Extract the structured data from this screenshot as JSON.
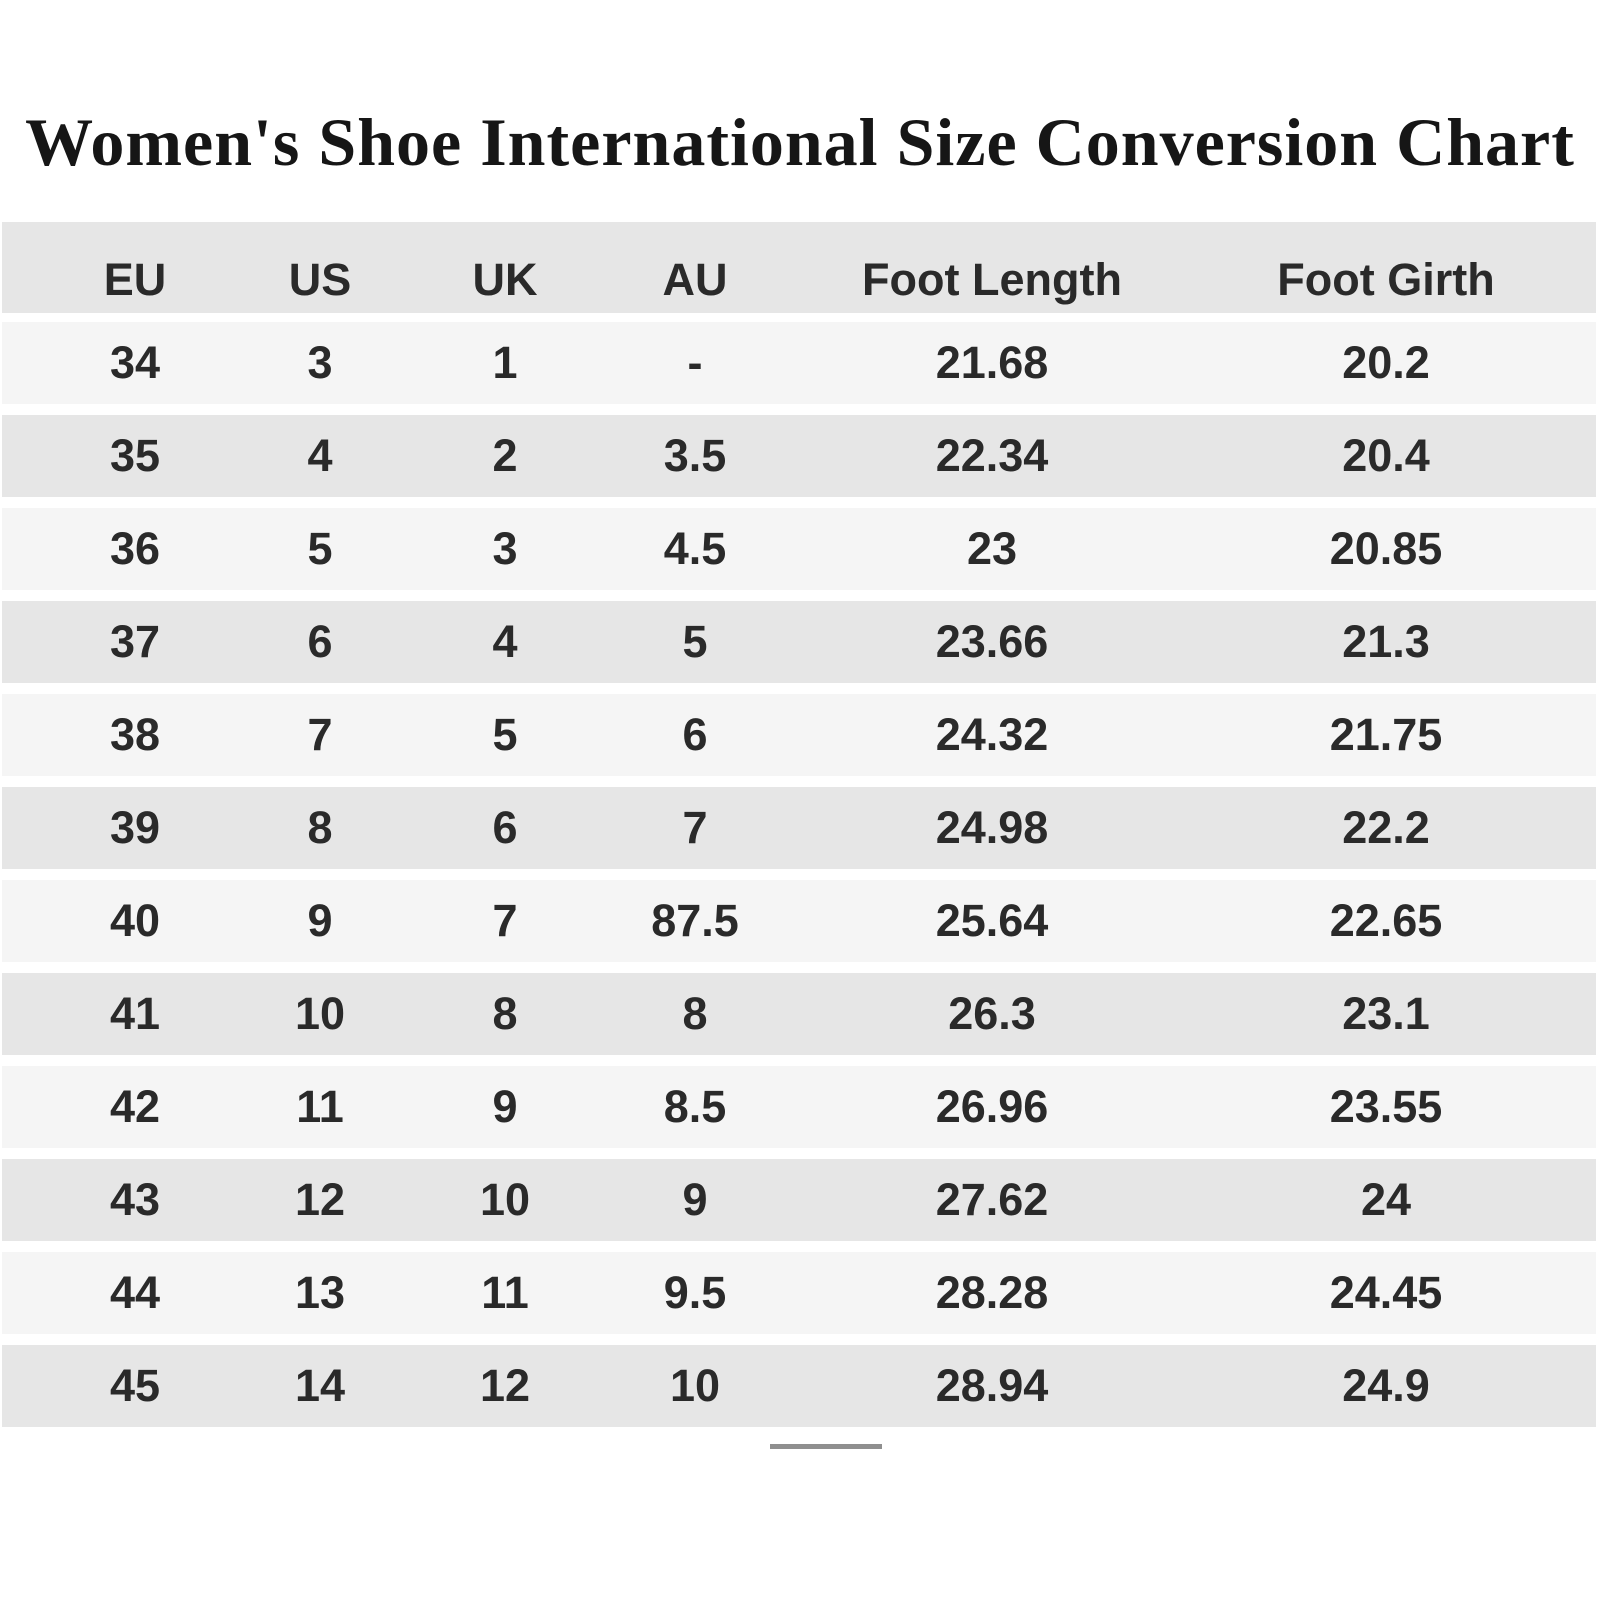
{
  "title": "Women's Shoe International Size Conversion Chart",
  "chart_data": {
    "type": "table",
    "title": "Women's Shoe International Size Conversion Chart",
    "columns": [
      "EU",
      "US",
      "UK",
      "AU",
      "Foot Length",
      "Foot Girth"
    ],
    "rows": [
      [
        "34",
        "3",
        "1",
        "-",
        "21.68",
        "20.2"
      ],
      [
        "35",
        "4",
        "2",
        "3.5",
        "22.34",
        "20.4"
      ],
      [
        "36",
        "5",
        "3",
        "4.5",
        "23",
        "20.85"
      ],
      [
        "37",
        "6",
        "4",
        "5",
        "23.66",
        "21.3"
      ],
      [
        "38",
        "7",
        "5",
        "6",
        "24.32",
        "21.75"
      ],
      [
        "39",
        "8",
        "6",
        "7",
        "24.98",
        "22.2"
      ],
      [
        "40",
        "9",
        "7",
        "87.5",
        "25.64",
        "22.65"
      ],
      [
        "41",
        "10",
        "8",
        "8",
        "26.3",
        "23.1"
      ],
      [
        "42",
        "11",
        "9",
        "8.5",
        "26.96",
        "23.55"
      ],
      [
        "43",
        "12",
        "10",
        "9",
        "27.62",
        "24"
      ],
      [
        "44",
        "13",
        "11",
        "9.5",
        "28.28",
        "24.45"
      ],
      [
        "45",
        "14",
        "12",
        "10",
        "28.94",
        "24.9"
      ]
    ],
    "layout": {
      "row_striping": true,
      "stripe_light": "#f5f5f5",
      "stripe_dark": "#e6e6e6",
      "legend": "none",
      "grid": "off"
    }
  },
  "colors": {
    "background": "#ffffff",
    "band_light": "#f5f5f5",
    "band_dark": "#e6e6e6",
    "text": "#2a2a2a",
    "divider": "#8f8f8f"
  }
}
